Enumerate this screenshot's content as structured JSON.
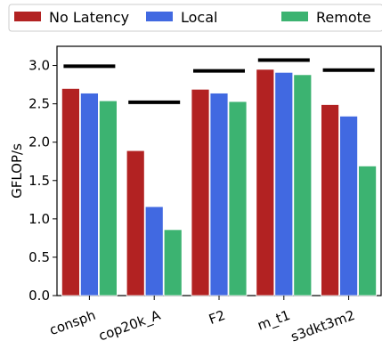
{
  "chart_data": {
    "type": "bar",
    "categories": [
      "consph",
      "cop20k_A",
      "F2",
      "m_t1",
      "s3dkt3m2"
    ],
    "series": [
      {
        "name": "No Latency",
        "color": "#b22222",
        "values": [
          2.7,
          1.89,
          2.69,
          2.95,
          2.49
        ]
      },
      {
        "name": "Local",
        "color": "#4169e1",
        "values": [
          2.64,
          1.16,
          2.64,
          2.91,
          2.34
        ]
      },
      {
        "name": "Remote",
        "color": "#3cb371",
        "values": [
          2.54,
          0.86,
          2.53,
          2.88,
          1.69
        ]
      }
    ],
    "reference": {
      "color": "#000000",
      "values": [
        2.99,
        2.52,
        2.93,
        3.07,
        2.94
      ]
    },
    "ylabel": "GFLOP/s",
    "xlabel": "",
    "ylim": [
      0,
      3.25
    ],
    "yticks": [
      "0.0",
      "0.5",
      "1.0",
      "1.5",
      "2.0",
      "2.5",
      "3.0"
    ],
    "grid": false,
    "legend_position": "top"
  }
}
